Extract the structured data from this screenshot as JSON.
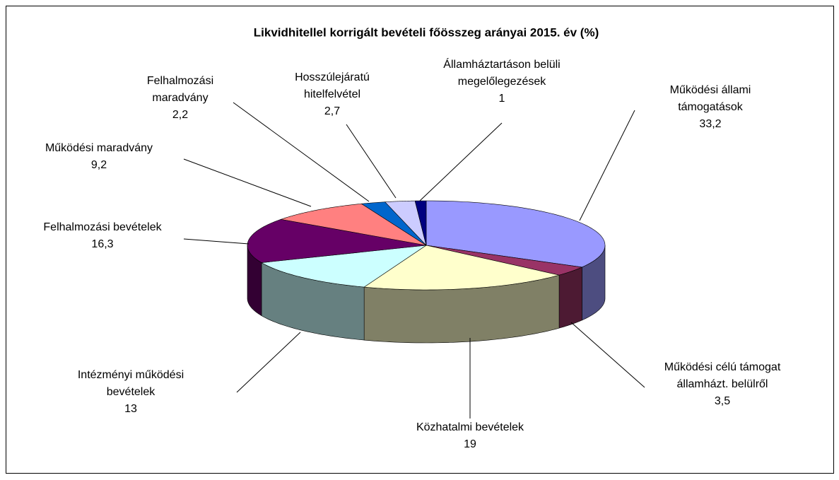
{
  "chart_data": {
    "type": "pie3d",
    "title": "Likvidhitellel korrigált bevételi főösszeg arányai 2015. év (%)",
    "categories": [
      "Működési állami támogatások",
      "Működési célú támogat államházt. belülről",
      "Közhatalmi bevételek",
      "Intézményi működési bevételek",
      "Felhalmozási bevételek",
      "Működési maradvány",
      "Felhalmozási maradvány",
      "Hosszúlejáratú hitelfelvétel",
      "Államháztartáson belüli megelőlegezések"
    ],
    "values": [
      33.2,
      3.5,
      19,
      13,
      16.3,
      9.2,
      2.2,
      2.7,
      1
    ],
    "value_labels": [
      "33,2",
      "3,5",
      "19",
      "13",
      "16,3",
      "9,2",
      "2,2",
      "2,7",
      "1"
    ],
    "colors": [
      "#9999ff",
      "#993366",
      "#ffffcc",
      "#ccffff",
      "#660066",
      "#ff8080",
      "#0066cc",
      "#ccccff",
      "#000080"
    ]
  }
}
